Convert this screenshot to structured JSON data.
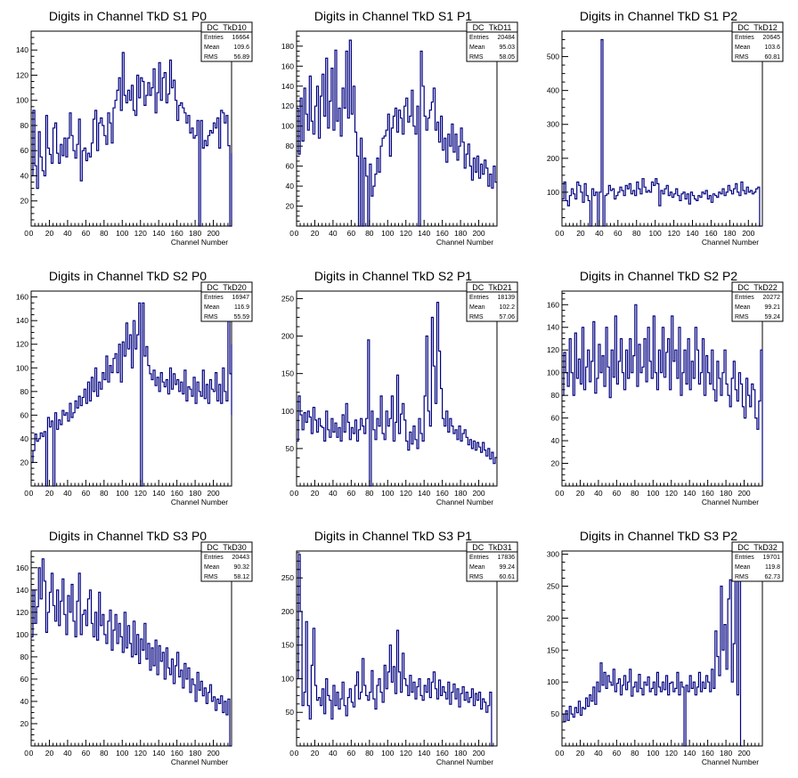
{
  "colors": {
    "line": "#000080",
    "axis": "#000000",
    "background": "#ffffff"
  },
  "chart_data": [
    {
      "type": "step",
      "title": "Digits in Channel TkD S1 P0",
      "xlabel": "Channel Number",
      "ylabel": "",
      "xlim": [
        0,
        220
      ],
      "ylim": [
        0,
        155
      ],
      "xticks": [
        0,
        20,
        40,
        60,
        80,
        100,
        120,
        140,
        160,
        180,
        200
      ],
      "yticks": [
        20,
        40,
        60,
        80,
        100,
        120,
        140
      ],
      "stats": {
        "name": "DC_TkD10",
        "entries": "16664",
        "mean": "109.6",
        "rms": "56.89"
      },
      "bin_width": 2,
      "values": [
        40,
        92,
        48,
        30,
        75,
        55,
        44,
        40,
        88,
        62,
        57,
        50,
        78,
        82,
        58,
        50,
        65,
        56,
        70,
        55,
        70,
        90,
        72,
        60,
        54,
        65,
        85,
        36,
        60,
        62,
        52,
        58,
        55,
        66,
        85,
        92,
        60,
        82,
        86,
        80,
        72,
        65,
        90,
        82,
        66,
        94,
        100,
        108,
        118,
        92,
        138,
        104,
        98,
        108,
        100,
        112,
        92,
        88,
        120,
        102,
        118,
        115,
        96,
        104,
        114,
        104,
        110,
        125,
        90,
        106,
        130,
        100,
        118,
        122,
        98,
        105,
        132,
        110,
        116,
        100,
        84,
        96,
        98,
        94,
        90,
        82,
        88,
        74,
        78,
        70,
        72,
        84,
        0,
        84,
        62,
        68,
        64,
        72,
        76,
        74,
        82,
        78,
        86,
        62,
        92,
        90,
        82,
        88,
        64,
        0,
        58
      ]
    },
    {
      "type": "step",
      "title": "Digits in Channel TkD S1 P1",
      "xlabel": "Channel Number",
      "ylabel": "",
      "xlim": [
        0,
        220
      ],
      "ylim": [
        0,
        195
      ],
      "xticks": [
        0,
        20,
        40,
        60,
        80,
        100,
        120,
        140,
        160,
        180,
        200
      ],
      "yticks": [
        20,
        40,
        60,
        80,
        100,
        120,
        140,
        160,
        180
      ],
      "stats": {
        "name": "DC_TkD11",
        "entries": "20484",
        "mean": "95.03",
        "rms": "58.05"
      },
      "bin_width": 2,
      "values": [
        118,
        72,
        128,
        85,
        138,
        112,
        96,
        150,
        105,
        92,
        120,
        140,
        88,
        130,
        152,
        110,
        168,
        98,
        125,
        158,
        96,
        176,
        105,
        118,
        90,
        138,
        118,
        175,
        108,
        186,
        112,
        140,
        94,
        70,
        0,
        88,
        0,
        68,
        50,
        0,
        62,
        30,
        40,
        52,
        68,
        54,
        80,
        88,
        90,
        96,
        112,
        70,
        98,
        110,
        118,
        94,
        116,
        108,
        92,
        120,
        128,
        104,
        110,
        136,
        100,
        92,
        120,
        0,
        175,
        140,
        110,
        96,
        108,
        116,
        124,
        138,
        96,
        104,
        84,
        110,
        76,
        88,
        64,
        92,
        80,
        102,
        74,
        92,
        66,
        80,
        98,
        84,
        58,
        72,
        82,
        60,
        46,
        68,
        54,
        70,
        48,
        62,
        52,
        66,
        58,
        40,
        52,
        38,
        60,
        44
      ]
    },
    {
      "type": "step",
      "title": "Digits in Channel TkD S1 P2",
      "xlabel": "Channel Number",
      "ylabel": "",
      "xlim": [
        0,
        215
      ],
      "ylim": [
        0,
        575
      ],
      "xticks": [
        0,
        20,
        40,
        60,
        80,
        100,
        120,
        140,
        160,
        180,
        200
      ],
      "yticks": [
        100,
        200,
        300,
        400,
        500
      ],
      "stats": {
        "name": "DC_TkD12",
        "entries": "20645",
        "mean": "103.6",
        "rms": "60.81"
      },
      "bin_width": 2,
      "values": [
        80,
        130,
        75,
        60,
        90,
        110,
        95,
        80,
        130,
        120,
        100,
        70,
        125,
        90,
        75,
        0,
        110,
        90,
        100,
        0,
        100,
        550,
        0,
        90,
        95,
        120,
        105,
        110,
        80,
        90,
        100,
        115,
        105,
        90,
        120,
        110,
        125,
        95,
        105,
        90,
        130,
        110,
        95,
        140,
        115,
        100,
        105,
        100,
        130,
        120,
        140,
        125,
        60,
        105,
        95,
        110,
        120,
        90,
        100,
        85,
        95,
        110,
        90,
        75,
        95,
        100,
        80,
        95,
        65,
        100,
        90,
        80,
        75,
        90,
        85,
        100,
        95,
        105,
        80,
        90,
        70,
        95,
        90,
        85,
        100,
        95,
        110,
        90,
        100,
        120,
        105,
        95,
        110,
        125,
        100,
        90,
        130,
        105,
        95,
        115,
        100,
        105,
        95,
        100,
        110,
        115,
        0
      ]
    },
    {
      "type": "step",
      "title": "Digits in Channel TkD S2 P0",
      "xlabel": "Channel Number",
      "ylabel": "",
      "xlim": [
        0,
        220
      ],
      "ylim": [
        0,
        165
      ],
      "xticks": [
        0,
        20,
        40,
        60,
        80,
        100,
        120,
        140,
        160,
        180,
        200
      ],
      "yticks": [
        20,
        40,
        60,
        80,
        100,
        120,
        140,
        160
      ],
      "stats": {
        "name": "DC_TkD20",
        "entries": "16947",
        "mean": "116.9",
        "rms": "55.59"
      },
      "bin_width": 2,
      "values": [
        20,
        30,
        44,
        38,
        40,
        45,
        42,
        46,
        0,
        58,
        50,
        55,
        0,
        62,
        48,
        56,
        52,
        64,
        60,
        62,
        55,
        70,
        58,
        62,
        72,
        66,
        76,
        68,
        75,
        82,
        70,
        88,
        72,
        92,
        80,
        100,
        76,
        88,
        82,
        96,
        90,
        110,
        88,
        102,
        96,
        108,
        112,
        96,
        120,
        88,
        122,
        110,
        138,
        116,
        128,
        100,
        140,
        116,
        128,
        155,
        0,
        155,
        110,
        118,
        102,
        95,
        90,
        98,
        85,
        92,
        80,
        96,
        88,
        84,
        90,
        78,
        100,
        82,
        95,
        86,
        90,
        80,
        88,
        78,
        98,
        72,
        84,
        82,
        76,
        92,
        70,
        88,
        80,
        76,
        98,
        74,
        86,
        70,
        90,
        82,
        80,
        96,
        72,
        86,
        70,
        100,
        80,
        72,
        140,
        95,
        120,
        60
      ]
    },
    {
      "type": "step",
      "title": "Digits in Channel TkD S2 P1",
      "xlabel": "Channel Number",
      "ylabel": "",
      "xlim": [
        0,
        220
      ],
      "ylim": [
        0,
        260
      ],
      "xticks": [
        0,
        20,
        40,
        60,
        80,
        100,
        120,
        140,
        160,
        180,
        200
      ],
      "yticks": [
        50,
        100,
        150,
        200,
        250
      ],
      "stats": {
        "name": "DC_TkD21",
        "entries": "18139",
        "mean": "102.2",
        "rms": "57.06"
      },
      "bin_width": 2,
      "values": [
        60,
        120,
        95,
        75,
        98,
        85,
        100,
        92,
        70,
        105,
        88,
        72,
        90,
        80,
        78,
        60,
        100,
        75,
        65,
        90,
        72,
        84,
        65,
        78,
        60,
        95,
        72,
        110,
        85,
        62,
        78,
        70,
        88,
        60,
        75,
        90,
        80,
        70,
        90,
        195,
        0,
        100,
        75,
        62,
        90,
        80,
        120,
        70,
        62,
        100,
        80,
        90,
        120,
        60,
        85,
        148,
        70,
        96,
        110,
        88,
        60,
        48,
        72,
        56,
        80,
        62,
        50,
        90,
        70,
        60,
        120,
        200,
        100,
        80,
        225,
        160,
        110,
        245,
        180,
        130,
        90,
        80,
        100,
        72,
        90,
        80,
        70,
        75,
        62,
        80,
        60,
        70,
        75,
        65,
        55,
        62,
        50,
        60,
        48,
        58,
        52,
        45,
        58,
        48,
        40,
        50,
        36,
        45,
        30,
        38
      ]
    },
    {
      "type": "step",
      "title": "Digits in Channel TkD S2 P2",
      "xlabel": "Channel Number",
      "ylabel": "",
      "xlim": [
        0,
        220
      ],
      "ylim": [
        0,
        172
      ],
      "xticks": [
        0,
        20,
        40,
        60,
        80,
        100,
        120,
        140,
        160,
        180,
        200
      ],
      "yticks": [
        20,
        40,
        60,
        80,
        100,
        120,
        140,
        160
      ],
      "stats": {
        "name": "DC_TkD22",
        "entries": "20272",
        "mean": "99.21",
        "rms": "59.24"
      },
      "bin_width": 2,
      "values": [
        80,
        118,
        100,
        88,
        130,
        100,
        80,
        135,
        95,
        112,
        90,
        140,
        85,
        105,
        120,
        92,
        110,
        145,
        82,
        95,
        125,
        100,
        115,
        88,
        140,
        105,
        78,
        120,
        96,
        150,
        90,
        110,
        130,
        100,
        85,
        120,
        95,
        130,
        100,
        115,
        160,
        88,
        125,
        100,
        105,
        130,
        92,
        140,
        110,
        95,
        150,
        100,
        85,
        120,
        100,
        140,
        96,
        118,
        130,
        85,
        150,
        110,
        120,
        95,
        140,
        80,
        100,
        120,
        90,
        130,
        85,
        110,
        95,
        140,
        120,
        90,
        100,
        130,
        80,
        115,
        100,
        90,
        120,
        85,
        75,
        110,
        95,
        80,
        100,
        120,
        90,
        80,
        70,
        95,
        110,
        85,
        75,
        100,
        90,
        70,
        60,
        95,
        80,
        70,
        90,
        85,
        60,
        50,
        75,
        120,
        0
      ]
    },
    {
      "type": "step",
      "title": "Digits in Channel TkD S3 P0",
      "xlabel": "Channel Number",
      "ylabel": "",
      "xlim": [
        0,
        220
      ],
      "ylim": [
        0,
        175
      ],
      "xticks": [
        0,
        20,
        40,
        60,
        80,
        100,
        120,
        140,
        160,
        180,
        200
      ],
      "yticks": [
        20,
        40,
        60,
        80,
        100,
        120,
        140,
        160
      ],
      "stats": {
        "name": "DC_TkD30",
        "entries": "20443",
        "mean": "90.32",
        "rms": "58.12"
      },
      "bin_width": 2,
      "values": [
        98,
        140,
        110,
        125,
        160,
        132,
        168,
        148,
        102,
        120,
        138,
        155,
        126,
        112,
        140,
        108,
        130,
        150,
        118,
        100,
        135,
        120,
        145,
        112,
        98,
        130,
        155,
        100,
        118,
        122,
        108,
        132,
        140,
        110,
        98,
        120,
        95,
        138,
        108,
        118,
        100,
        92,
        112,
        122,
        86,
        104,
        118,
        92,
        110,
        98,
        84,
        120,
        88,
        108,
        92,
        80,
        112,
        82,
        100,
        74,
        96,
        86,
        110,
        78,
        92,
        68,
        88,
        72,
        95,
        64,
        90,
        76,
        84,
        60,
        88,
        70,
        64,
        78,
        56,
        72,
        84,
        62,
        68,
        52,
        74,
        60,
        70,
        48,
        60,
        55,
        40,
        66,
        50,
        58,
        45,
        52,
        38,
        48,
        55,
        40,
        44,
        32,
        42,
        38,
        45,
        30,
        40,
        28,
        42,
        0
      ]
    },
    {
      "type": "step",
      "title": "Digits in Channel TkD S3 P1",
      "xlabel": "Channel Number",
      "ylabel": "",
      "xlim": [
        0,
        220
      ],
      "ylim": [
        0,
        290
      ],
      "xticks": [
        0,
        20,
        40,
        60,
        80,
        100,
        120,
        140,
        160,
        180,
        200
      ],
      "yticks": [
        50,
        100,
        150,
        200,
        250
      ],
      "stats": {
        "name": "DC_TkD31",
        "entries": "17836",
        "mean": "99.24",
        "rms": "60.61"
      },
      "bin_width": 2,
      "values": [
        100,
        285,
        200,
        60,
        80,
        185,
        60,
        40,
        120,
        175,
        90,
        68,
        72,
        60,
        85,
        48,
        100,
        75,
        68,
        40,
        90,
        60,
        80,
        55,
        70,
        95,
        60,
        45,
        72,
        85,
        65,
        58,
        90,
        110,
        70,
        80,
        130,
        90,
        75,
        68,
        80,
        112,
        70,
        55,
        90,
        100,
        80,
        65,
        120,
        85,
        110,
        150,
        95,
        118,
        78,
        172,
        110,
        80,
        138,
        100,
        90,
        75,
        105,
        80,
        95,
        70,
        88,
        100,
        75,
        68,
        90,
        80,
        100,
        72,
        95,
        110,
        85,
        70,
        98,
        75,
        88,
        80,
        70,
        95,
        62,
        80,
        92,
        70,
        85,
        58,
        78,
        88,
        68,
        80,
        65,
        72,
        85,
        60,
        78,
        68,
        80,
        55,
        70,
        65,
        50,
        60,
        80,
        0
      ]
    },
    {
      "type": "step",
      "title": "Digits in Channel TkD S3 P2",
      "xlabel": "Channel Number",
      "ylabel": "",
      "xlim": [
        0,
        220
      ],
      "ylim": [
        0,
        305
      ],
      "xticks": [
        0,
        20,
        40,
        60,
        80,
        100,
        120,
        140,
        160,
        180,
        200
      ],
      "yticks": [
        50,
        100,
        150,
        200,
        250,
        300
      ],
      "stats": {
        "name": "DC_TkD32",
        "entries": "19701",
        "mean": "119.8",
        "rms": "62.73"
      },
      "bin_width": 2,
      "values": [
        50,
        38,
        55,
        40,
        62,
        50,
        45,
        60,
        52,
        70,
        48,
        60,
        58,
        75,
        62,
        80,
        70,
        92,
        65,
        100,
        85,
        130,
        95,
        115,
        90,
        110,
        100,
        95,
        120,
        85,
        98,
        105,
        80,
        95,
        110,
        88,
        100,
        120,
        78,
        92,
        100,
        85,
        112,
        90,
        80,
        100,
        95,
        108,
        85,
        90,
        100,
        80,
        115,
        92,
        85,
        100,
        88,
        110,
        80,
        98,
        100,
        85,
        90,
        115,
        80,
        100,
        92,
        0,
        95,
        85,
        110,
        90,
        100,
        80,
        92,
        115,
        85,
        100,
        90,
        110,
        100,
        85,
        120,
        90,
        180,
        140,
        110,
        250,
        150,
        190,
        120,
        230,
        260,
        100,
        160,
        280,
        80,
        300,
        0
      ]
    }
  ]
}
